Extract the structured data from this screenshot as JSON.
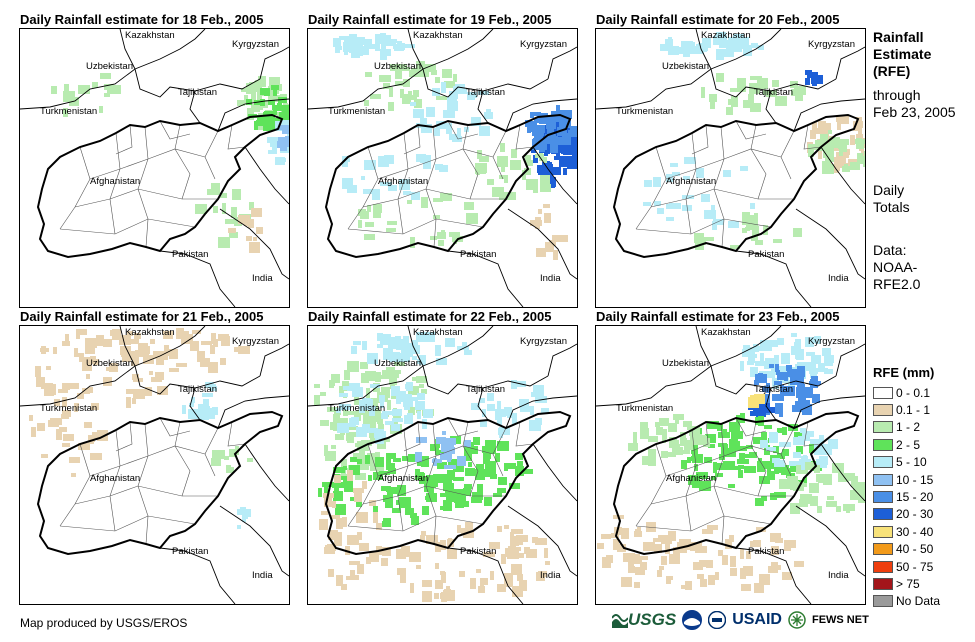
{
  "panels": [
    {
      "title": "Daily Rainfall estimate for 18 Feb., 2005"
    },
    {
      "title": "Daily Rainfall estimate for 19 Feb., 2005"
    },
    {
      "title": "Daily Rainfall estimate for 20 Feb., 2005"
    },
    {
      "title": "Daily Rainfall estimate for 21 Feb., 2005"
    },
    {
      "title": "Daily Rainfall estimate for 22 Feb., 2005"
    },
    {
      "title": "Daily Rainfall estimate for 23 Feb., 2005"
    }
  ],
  "map_labels": {
    "kazakhstan": "Kazakhstan",
    "kyrgyzstan": "Kyrgyzstan",
    "uzbekistan": "Uzbekistan",
    "tajikistan": "Tajikistan",
    "turkmenistan": "Turkmenistan",
    "afghanistan": "Afghanistan",
    "pakistan": "Pakistan",
    "india": "India"
  },
  "side": {
    "title_lines": [
      "Rainfall",
      "Estimate",
      "(RFE)"
    ],
    "through_lines": [
      "through",
      "Feb 23, 2005"
    ],
    "daily_lines": [
      "Daily",
      "Totals"
    ],
    "data_lines": [
      "Data:",
      "NOAA-",
      "RFE2.0"
    ]
  },
  "legend": {
    "title": "RFE (mm)",
    "items": [
      {
        "label": "0 - 0.1",
        "color": "#ffffff"
      },
      {
        "label": "0.1 - 1",
        "color": "#e8d3b1"
      },
      {
        "label": "1 - 2",
        "color": "#b8ebb0"
      },
      {
        "label": "2 - 5",
        "color": "#5fe35a"
      },
      {
        "label": "5 - 10",
        "color": "#b7ecf7"
      },
      {
        "label": "10 - 15",
        "color": "#8fc1f2"
      },
      {
        "label": "15 - 20",
        "color": "#4a8fe6"
      },
      {
        "label": "20 - 30",
        "color": "#1d5fd7"
      },
      {
        "label": "30 - 40",
        "color": "#f8e27a"
      },
      {
        "label": "40 - 50",
        "color": "#f29a1a"
      },
      {
        "label": "50 - 75",
        "color": "#ee3e0e"
      },
      {
        "label": "> 75",
        "color": "#a3151a"
      },
      {
        "label": "No Data",
        "color": "#9a9a9a"
      }
    ]
  },
  "credit": "Map produced by USGS/EROS",
  "logos": {
    "usgs": "USGS",
    "usaid": "USAID",
    "fews": "FEWS NET"
  },
  "icons": [
    "usgs-logo-icon",
    "noaa-logo-icon",
    "usaid-seal-icon",
    "fews-net-logo-icon"
  ]
}
